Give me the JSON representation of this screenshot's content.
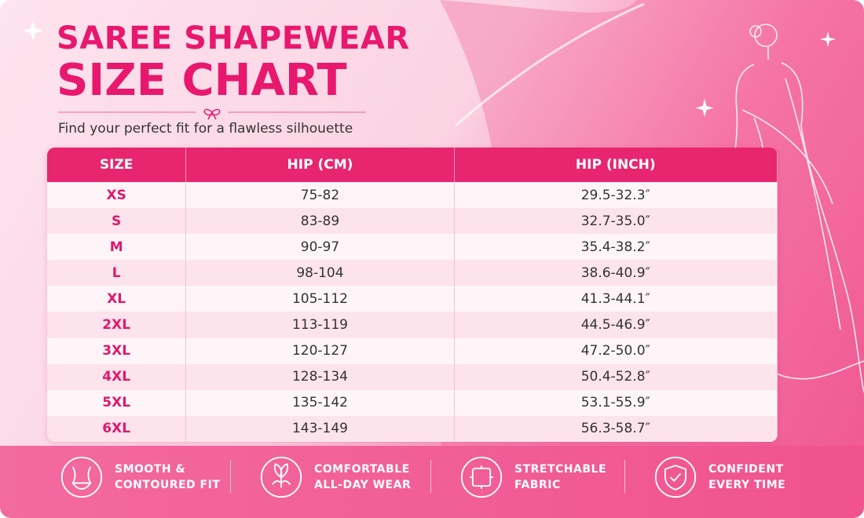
{
  "header": {
    "title_line1": "SAREE SHAPEWEAR",
    "title_line2": "SIZE CHART",
    "subtitle": "Find your perfect fit for a flawless silhouette"
  },
  "table": {
    "columns": [
      "SIZE",
      "HIP (CM)",
      "HIP (INCH)"
    ],
    "rows": [
      [
        "XS",
        "75-82",
        "29.5-32.3″"
      ],
      [
        "S",
        "83-89",
        "32.7-35.0″"
      ],
      [
        "M",
        "90-97",
        "35.4-38.2″"
      ],
      [
        "L",
        "98-104",
        "38.6-40.9″"
      ],
      [
        "XL",
        "105-112",
        "41.3-44.1″"
      ],
      [
        "2XL",
        "113-119",
        "44.5-46.9″"
      ],
      [
        "3XL",
        "120-127",
        "47.2-50.0″"
      ],
      [
        "4XL",
        "128-134",
        "50.4-52.8″"
      ],
      [
        "5XL",
        "135-142",
        "53.1-55.9″"
      ],
      [
        "6XL",
        "143-149",
        "56.3-58.7″"
      ]
    ]
  },
  "features": [
    {
      "lines": [
        "SMOOTH &",
        "CONTOURED FIT"
      ]
    },
    {
      "lines": [
        "COMFORTABLE",
        "ALL-DAY WEAR"
      ]
    },
    {
      "lines": [
        "STRETCHABLE",
        "FABRIC"
      ]
    },
    {
      "lines": [
        "CONFIDENT",
        "EVERY TIME"
      ]
    }
  ]
}
